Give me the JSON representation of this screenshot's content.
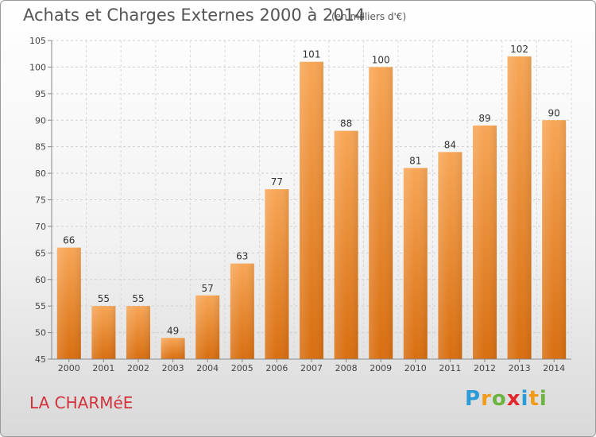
{
  "title": "Achats et Charges Externes 2000 à 2014",
  "subtitle": "(en milliers d'€)",
  "place": "LA CHARMéE",
  "logo": {
    "letters": [
      "P",
      "r",
      "o",
      "x",
      "i",
      "t",
      "i"
    ],
    "colors": [
      "#2b9ad6",
      "#f29a1a",
      "#6cb43f",
      "#e2262b",
      "#2b9ad6",
      "#f29a1a",
      "#6cb43f"
    ]
  },
  "chart_data": {
    "type": "bar",
    "title": "Achats et Charges Externes 2000 à 2014",
    "categories": [
      "2000",
      "2001",
      "2002",
      "2003",
      "2004",
      "2005",
      "2006",
      "2007",
      "2008",
      "2009",
      "2010",
      "2011",
      "2012",
      "2013",
      "2014"
    ],
    "values": [
      66,
      55,
      55,
      49,
      57,
      63,
      77,
      101,
      88,
      100,
      81,
      84,
      89,
      102,
      90
    ],
    "ylim": [
      45,
      105
    ],
    "yticks": [
      45,
      50,
      55,
      60,
      65,
      70,
      75,
      80,
      85,
      90,
      95,
      100,
      105
    ],
    "grid": true,
    "bar_color": "#f08a2a"
  }
}
